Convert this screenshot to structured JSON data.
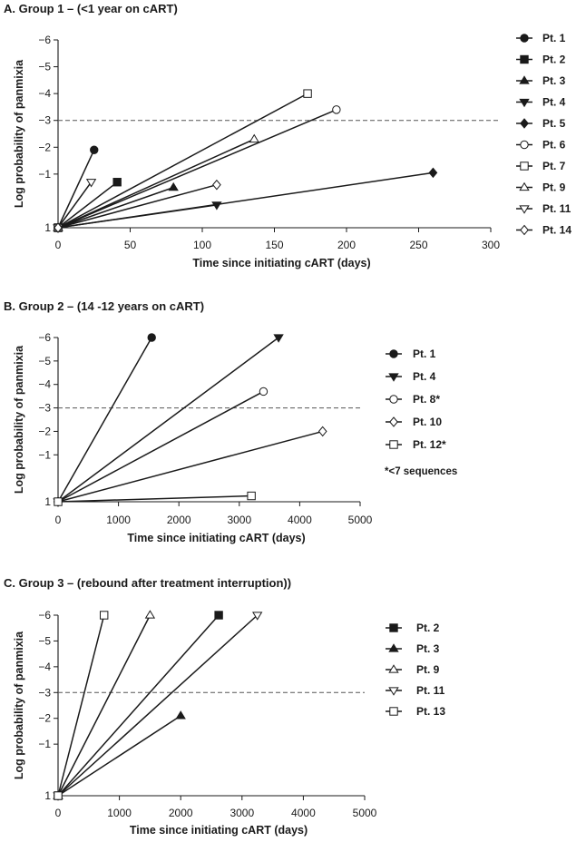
{
  "chart_data": [
    {
      "type": "line",
      "title": "A. Group 1 – (<1 year on cART)",
      "xlabel": "Time since initiating cART (days)",
      "ylabel": "Log probability of panmixia",
      "xlim": [
        0,
        300
      ],
      "ylim": [
        1,
        -6
      ],
      "xticks": [
        0,
        50,
        100,
        150,
        200,
        250,
        300
      ],
      "yticks": [
        1,
        -1,
        -2,
        -3,
        -4,
        -5,
        -6
      ],
      "yticklabels": [
        "1",
        "−1",
        "−2",
        "−3",
        "−4",
        "−5",
        "−6"
      ],
      "threshold": -3,
      "legend_position": "right",
      "series": [
        {
          "name": "Pt. 1",
          "marker": "circle-filled",
          "x": [
            0,
            25
          ],
          "y": [
            1,
            -1.9
          ]
        },
        {
          "name": "Pt. 2",
          "marker": "square-filled",
          "x": [
            0,
            41
          ],
          "y": [
            1,
            -0.7
          ]
        },
        {
          "name": "Pt. 3",
          "marker": "triangle-filled",
          "x": [
            0,
            80
          ],
          "y": [
            1,
            -0.5
          ]
        },
        {
          "name": "Pt. 4",
          "marker": "triangle-down-filled",
          "x": [
            0,
            110
          ],
          "y": [
            1,
            0.15
          ]
        },
        {
          "name": "Pt. 5",
          "marker": "diamond-filled",
          "x": [
            0,
            260
          ],
          "y": [
            1,
            -1.05
          ]
        },
        {
          "name": "Pt. 6",
          "marker": "circle-open",
          "x": [
            0,
            193
          ],
          "y": [
            1,
            -3.4
          ]
        },
        {
          "name": "Pt. 7",
          "marker": "square-open",
          "x": [
            0,
            173
          ],
          "y": [
            1,
            -4.0
          ]
        },
        {
          "name": "Pt. 9",
          "marker": "triangle-open",
          "x": [
            0,
            136
          ],
          "y": [
            1,
            -2.3
          ]
        },
        {
          "name": "Pt. 11",
          "marker": "triangle-down-open",
          "x": [
            0,
            23
          ],
          "y": [
            1,
            -0.7
          ]
        },
        {
          "name": "Pt. 14",
          "marker": "diamond-open",
          "x": [
            0,
            110
          ],
          "y": [
            1,
            -0.6
          ]
        }
      ]
    },
    {
      "type": "line",
      "title": "B. Group 2 – (14 -12 years on cART)",
      "xlabel": "Time since initiating cART (days)",
      "ylabel": "Log probability of panmixia",
      "xlim": [
        0,
        5000
      ],
      "ylim": [
        1,
        -6
      ],
      "xticks": [
        0,
        1000,
        2000,
        3000,
        4000,
        5000
      ],
      "yticks": [
        1,
        -1,
        -2,
        -3,
        -4,
        -5,
        -6
      ],
      "yticklabels": [
        "1",
        "−1",
        "−2",
        "−3",
        "−4",
        "−5",
        "−6"
      ],
      "threshold": -3,
      "legend_position": "right",
      "note": "*<7 sequences",
      "series": [
        {
          "name": "Pt. 1",
          "marker": "circle-filled",
          "x": [
            0,
            1550
          ],
          "y": [
            1,
            -6
          ]
        },
        {
          "name": "Pt. 4",
          "marker": "triangle-down-filled",
          "x": [
            0,
            3650
          ],
          "y": [
            1,
            -6
          ]
        },
        {
          "name": "Pt. 8*",
          "marker": "circle-open",
          "x": [
            0,
            3400
          ],
          "y": [
            1,
            -3.7
          ]
        },
        {
          "name": "Pt. 10",
          "marker": "diamond-open",
          "x": [
            0,
            4380
          ],
          "y": [
            1,
            -2
          ]
        },
        {
          "name": "Pt. 12*",
          "marker": "square-open",
          "x": [
            0,
            3200
          ],
          "y": [
            1,
            0.75
          ]
        }
      ]
    },
    {
      "type": "line",
      "title": "C. Group 3 – (rebound after treatment interruption))",
      "xlabel": "Time since initiating cART (days)",
      "ylabel": "Log probability of panmixia",
      "xlim": [
        0,
        5000
      ],
      "ylim": [
        1,
        -6
      ],
      "xticks": [
        0,
        1000,
        2000,
        3000,
        4000,
        5000
      ],
      "yticks": [
        1,
        -1,
        -2,
        -3,
        -4,
        -5,
        -6
      ],
      "yticklabels": [
        "1",
        "−1",
        "−2",
        "−3",
        "−4",
        "−5",
        "−6"
      ],
      "threshold": -3,
      "legend_position": "right",
      "series": [
        {
          "name": "Pt. 2",
          "marker": "square-filled",
          "x": [
            0,
            2620
          ],
          "y": [
            1,
            -6
          ]
        },
        {
          "name": "Pt. 3",
          "marker": "triangle-filled",
          "x": [
            0,
            2000
          ],
          "y": [
            1,
            -2.1
          ]
        },
        {
          "name": "Pt. 9",
          "marker": "triangle-open",
          "x": [
            0,
            1500
          ],
          "y": [
            1,
            -6
          ]
        },
        {
          "name": "Pt. 11",
          "marker": "triangle-down-open",
          "x": [
            0,
            3250
          ],
          "y": [
            1,
            -6
          ]
        },
        {
          "name": "Pt. 13",
          "marker": "square-open",
          "x": [
            0,
            750
          ],
          "y": [
            1,
            -6
          ]
        }
      ]
    }
  ]
}
